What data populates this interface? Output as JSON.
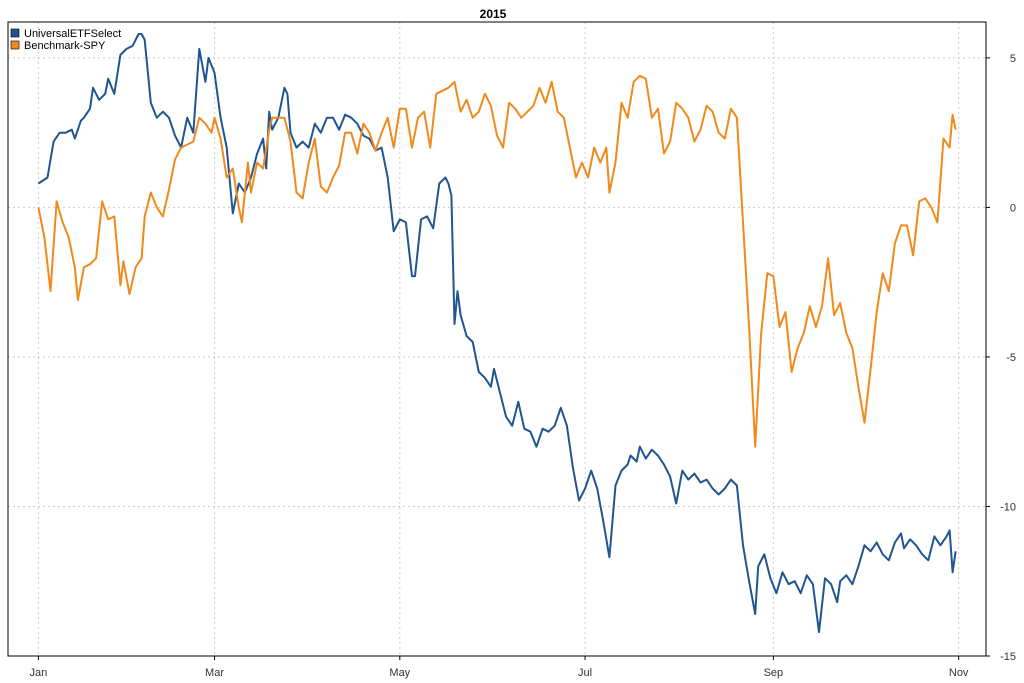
{
  "chart_data": {
    "type": "line",
    "title": "2015",
    "xlabel": "",
    "ylabel": "",
    "ylim": [
      -15,
      6.2
    ],
    "yticks": [
      5,
      0,
      -5,
      -10,
      -15
    ],
    "xticks": [
      {
        "label": "Jan",
        "day": 0
      },
      {
        "label": "Mar",
        "day": 58
      },
      {
        "label": "May",
        "day": 119
      },
      {
        "label": "Jul",
        "day": 180
      },
      {
        "label": "Sep",
        "day": 242
      },
      {
        "label": "Nov",
        "day": 303
      }
    ],
    "xlim": [
      -10,
      312
    ],
    "grid": true,
    "legend": "top-left",
    "series": [
      {
        "name": "UniversalETFSelect",
        "color": "#1f5591",
        "points": [
          [
            0,
            0.8
          ],
          [
            3,
            1.0
          ],
          [
            5,
            2.2
          ],
          [
            7,
            2.5
          ],
          [
            9,
            2.5
          ],
          [
            11,
            2.6
          ],
          [
            12,
            2.3
          ],
          [
            14,
            2.9
          ],
          [
            15,
            3.0
          ],
          [
            17,
            3.3
          ],
          [
            18,
            4.0
          ],
          [
            20,
            3.6
          ],
          [
            22,
            3.8
          ],
          [
            23,
            4.3
          ],
          [
            25,
            3.8
          ],
          [
            27,
            5.1
          ],
          [
            29,
            5.3
          ],
          [
            31,
            5.4
          ],
          [
            33,
            5.8
          ],
          [
            34,
            5.8
          ],
          [
            35,
            5.6
          ],
          [
            37,
            3.5
          ],
          [
            39,
            3.0
          ],
          [
            41,
            3.2
          ],
          [
            43,
            3.0
          ],
          [
            45,
            2.4
          ],
          [
            47,
            2.0
          ],
          [
            49,
            3.0
          ],
          [
            51,
            2.5
          ],
          [
            53,
            5.3
          ],
          [
            55,
            4.2
          ],
          [
            56,
            5.0
          ],
          [
            58,
            4.5
          ],
          [
            60,
            3.0
          ],
          [
            62,
            2.0
          ],
          [
            64,
            -0.2
          ],
          [
            66,
            0.8
          ],
          [
            68,
            0.5
          ],
          [
            70,
            1.0
          ],
          [
            72,
            1.8
          ],
          [
            74,
            2.3
          ],
          [
            75,
            1.3
          ],
          [
            76,
            3.2
          ],
          [
            77,
            2.6
          ],
          [
            79,
            3.0
          ],
          [
            81,
            4.0
          ],
          [
            82,
            3.8
          ],
          [
            83,
            2.5
          ],
          [
            85,
            2.0
          ],
          [
            87,
            2.2
          ],
          [
            89,
            2.0
          ],
          [
            91,
            2.8
          ],
          [
            93,
            2.5
          ],
          [
            95,
            3.0
          ],
          [
            97,
            3.0
          ],
          [
            99,
            2.6
          ],
          [
            101,
            3.1
          ],
          [
            103,
            3.0
          ],
          [
            105,
            2.8
          ],
          [
            107,
            2.4
          ],
          [
            109,
            2.3
          ],
          [
            111,
            1.9
          ],
          [
            113,
            2.0
          ],
          [
            115,
            1.0
          ],
          [
            117,
            -0.8
          ],
          [
            119,
            -0.4
          ],
          [
            121,
            -0.5
          ],
          [
            123,
            -2.3
          ],
          [
            124,
            -2.3
          ],
          [
            126,
            -0.4
          ],
          [
            128,
            -0.3
          ],
          [
            130,
            -0.7
          ],
          [
            132,
            0.8
          ],
          [
            134,
            1.0
          ],
          [
            135,
            0.8
          ],
          [
            136,
            0.4
          ],
          [
            137,
            -3.9
          ],
          [
            138,
            -2.8
          ],
          [
            139,
            -3.6
          ],
          [
            141,
            -4.3
          ],
          [
            143,
            -4.5
          ],
          [
            145,
            -5.5
          ],
          [
            147,
            -5.7
          ],
          [
            149,
            -6.0
          ],
          [
            150,
            -5.4
          ],
          [
            152,
            -6.2
          ],
          [
            154,
            -7.0
          ],
          [
            156,
            -7.3
          ],
          [
            158,
            -6.5
          ],
          [
            160,
            -7.4
          ],
          [
            162,
            -7.5
          ],
          [
            164,
            -8.0
          ],
          [
            166,
            -7.4
          ],
          [
            168,
            -7.5
          ],
          [
            170,
            -7.3
          ],
          [
            172,
            -6.7
          ],
          [
            174,
            -7.3
          ],
          [
            176,
            -8.7
          ],
          [
            178,
            -9.8
          ],
          [
            180,
            -9.4
          ],
          [
            182,
            -8.8
          ],
          [
            184,
            -9.4
          ],
          [
            186,
            -10.5
          ],
          [
            188,
            -11.7
          ],
          [
            190,
            -9.3
          ],
          [
            192,
            -8.8
          ],
          [
            194,
            -8.6
          ],
          [
            195,
            -8.3
          ],
          [
            197,
            -8.5
          ],
          [
            198,
            -8.0
          ],
          [
            200,
            -8.4
          ],
          [
            202,
            -8.1
          ],
          [
            204,
            -8.3
          ],
          [
            206,
            -8.6
          ],
          [
            208,
            -9.0
          ],
          [
            210,
            -9.9
          ],
          [
            212,
            -8.8
          ],
          [
            214,
            -9.1
          ],
          [
            216,
            -8.9
          ],
          [
            218,
            -9.2
          ],
          [
            220,
            -9.1
          ],
          [
            222,
            -9.4
          ],
          [
            224,
            -9.6
          ],
          [
            226,
            -9.4
          ],
          [
            228,
            -9.1
          ],
          [
            230,
            -9.3
          ],
          [
            232,
            -11.3
          ],
          [
            234,
            -12.5
          ],
          [
            236,
            -13.6
          ],
          [
            237,
            -12.0
          ],
          [
            239,
            -11.6
          ],
          [
            241,
            -12.4
          ],
          [
            243,
            -12.9
          ],
          [
            245,
            -12.2
          ],
          [
            247,
            -12.6
          ],
          [
            249,
            -12.5
          ],
          [
            251,
            -12.9
          ],
          [
            253,
            -12.3
          ],
          [
            255,
            -12.6
          ],
          [
            257,
            -14.2
          ],
          [
            259,
            -12.4
          ],
          [
            261,
            -12.6
          ],
          [
            263,
            -13.2
          ],
          [
            264,
            -12.5
          ],
          [
            266,
            -12.3
          ],
          [
            268,
            -12.6
          ],
          [
            270,
            -12.0
          ],
          [
            272,
            -11.3
          ],
          [
            274,
            -11.5
          ],
          [
            276,
            -11.2
          ],
          [
            278,
            -11.6
          ],
          [
            280,
            -11.8
          ],
          [
            282,
            -11.2
          ],
          [
            284,
            -10.9
          ],
          [
            285,
            -11.4
          ],
          [
            287,
            -11.1
          ],
          [
            289,
            -11.3
          ],
          [
            291,
            -11.6
          ],
          [
            293,
            -11.8
          ],
          [
            295,
            -11.0
          ],
          [
            297,
            -11.3
          ],
          [
            299,
            -11.0
          ],
          [
            300,
            -10.8
          ],
          [
            301,
            -12.2
          ],
          [
            302,
            -11.5
          ]
        ]
      },
      {
        "name": "Benchmark-SPY",
        "color": "#f08a1c",
        "points": [
          [
            0,
            0.0
          ],
          [
            2,
            -1.0
          ],
          [
            4,
            -2.8
          ],
          [
            6,
            0.2
          ],
          [
            8,
            -0.5
          ],
          [
            10,
            -1.0
          ],
          [
            12,
            -2.0
          ],
          [
            13,
            -3.1
          ],
          [
            15,
            -2.0
          ],
          [
            17,
            -1.9
          ],
          [
            19,
            -1.7
          ],
          [
            21,
            0.2
          ],
          [
            23,
            -0.4
          ],
          [
            25,
            -0.3
          ],
          [
            27,
            -2.6
          ],
          [
            28,
            -1.8
          ],
          [
            30,
            -2.9
          ],
          [
            32,
            -2.0
          ],
          [
            34,
            -1.7
          ],
          [
            35,
            -0.3
          ],
          [
            37,
            0.5
          ],
          [
            39,
            0.0
          ],
          [
            41,
            -0.3
          ],
          [
            43,
            0.6
          ],
          [
            45,
            1.6
          ],
          [
            47,
            2.0
          ],
          [
            49,
            2.1
          ],
          [
            51,
            2.2
          ],
          [
            53,
            3.0
          ],
          [
            55,
            2.8
          ],
          [
            57,
            2.5
          ],
          [
            58,
            3.0
          ],
          [
            60,
            2.3
          ],
          [
            62,
            1.0
          ],
          [
            64,
            1.3
          ],
          [
            66,
            0.0
          ],
          [
            67,
            -0.5
          ],
          [
            69,
            1.5
          ],
          [
            70,
            0.5
          ],
          [
            72,
            1.5
          ],
          [
            74,
            1.3
          ],
          [
            76,
            2.6
          ],
          [
            77,
            3.0
          ],
          [
            79,
            3.0
          ],
          [
            81,
            3.0
          ],
          [
            83,
            2.2
          ],
          [
            85,
            0.5
          ],
          [
            87,
            0.3
          ],
          [
            89,
            1.5
          ],
          [
            91,
            2.3
          ],
          [
            93,
            0.7
          ],
          [
            95,
            0.5
          ],
          [
            97,
            1.0
          ],
          [
            99,
            1.4
          ],
          [
            101,
            2.5
          ],
          [
            103,
            2.5
          ],
          [
            105,
            1.8
          ],
          [
            107,
            2.8
          ],
          [
            109,
            2.5
          ],
          [
            111,
            1.9
          ],
          [
            113,
            2.5
          ],
          [
            115,
            3.0
          ],
          [
            117,
            2.0
          ],
          [
            119,
            3.3
          ],
          [
            121,
            3.3
          ],
          [
            123,
            2.0
          ],
          [
            125,
            3.0
          ],
          [
            127,
            3.2
          ],
          [
            129,
            2.0
          ],
          [
            131,
            3.8
          ],
          [
            133,
            3.9
          ],
          [
            135,
            4.0
          ],
          [
            137,
            4.2
          ],
          [
            139,
            3.2
          ],
          [
            141,
            3.6
          ],
          [
            143,
            3.0
          ],
          [
            145,
            3.2
          ],
          [
            147,
            3.8
          ],
          [
            149,
            3.4
          ],
          [
            151,
            2.4
          ],
          [
            153,
            2.0
          ],
          [
            155,
            3.5
          ],
          [
            157,
            3.3
          ],
          [
            159,
            3.0
          ],
          [
            161,
            3.2
          ],
          [
            163,
            3.4
          ],
          [
            165,
            4.0
          ],
          [
            167,
            3.5
          ],
          [
            169,
            4.2
          ],
          [
            171,
            3.2
          ],
          [
            173,
            3.0
          ],
          [
            175,
            2.0
          ],
          [
            177,
            1.0
          ],
          [
            179,
            1.5
          ],
          [
            181,
            1.0
          ],
          [
            183,
            2.0
          ],
          [
            185,
            1.5
          ],
          [
            187,
            2.0
          ],
          [
            188,
            0.5
          ],
          [
            190,
            1.5
          ],
          [
            192,
            3.5
          ],
          [
            194,
            3.0
          ],
          [
            196,
            4.2
          ],
          [
            198,
            4.4
          ],
          [
            200,
            4.3
          ],
          [
            202,
            3.0
          ],
          [
            204,
            3.3
          ],
          [
            206,
            1.8
          ],
          [
            208,
            2.2
          ],
          [
            210,
            3.5
          ],
          [
            212,
            3.3
          ],
          [
            214,
            3.0
          ],
          [
            216,
            2.2
          ],
          [
            218,
            2.6
          ],
          [
            220,
            3.4
          ],
          [
            222,
            3.2
          ],
          [
            224,
            2.5
          ],
          [
            226,
            2.3
          ],
          [
            228,
            3.3
          ],
          [
            230,
            3.0
          ],
          [
            232,
            -0.5
          ],
          [
            234,
            -4.0
          ],
          [
            236,
            -8.0
          ],
          [
            238,
            -4.2
          ],
          [
            240,
            -2.2
          ],
          [
            242,
            -2.3
          ],
          [
            244,
            -4.0
          ],
          [
            246,
            -3.5
          ],
          [
            248,
            -5.5
          ],
          [
            250,
            -4.7
          ],
          [
            252,
            -4.2
          ],
          [
            254,
            -3.3
          ],
          [
            256,
            -4.0
          ],
          [
            258,
            -3.3
          ],
          [
            260,
            -1.7
          ],
          [
            262,
            -3.6
          ],
          [
            264,
            -3.2
          ],
          [
            266,
            -4.2
          ],
          [
            268,
            -4.7
          ],
          [
            270,
            -6.0
          ],
          [
            272,
            -7.2
          ],
          [
            274,
            -5.4
          ],
          [
            276,
            -3.5
          ],
          [
            278,
            -2.2
          ],
          [
            280,
            -2.8
          ],
          [
            282,
            -1.2
          ],
          [
            284,
            -0.6
          ],
          [
            286,
            -0.6
          ],
          [
            288,
            -1.6
          ],
          [
            290,
            0.2
          ],
          [
            292,
            0.3
          ],
          [
            294,
            0.0
          ],
          [
            296,
            -0.5
          ],
          [
            298,
            2.3
          ],
          [
            300,
            2.0
          ],
          [
            301,
            3.1
          ],
          [
            302,
            2.6
          ]
        ]
      }
    ]
  }
}
